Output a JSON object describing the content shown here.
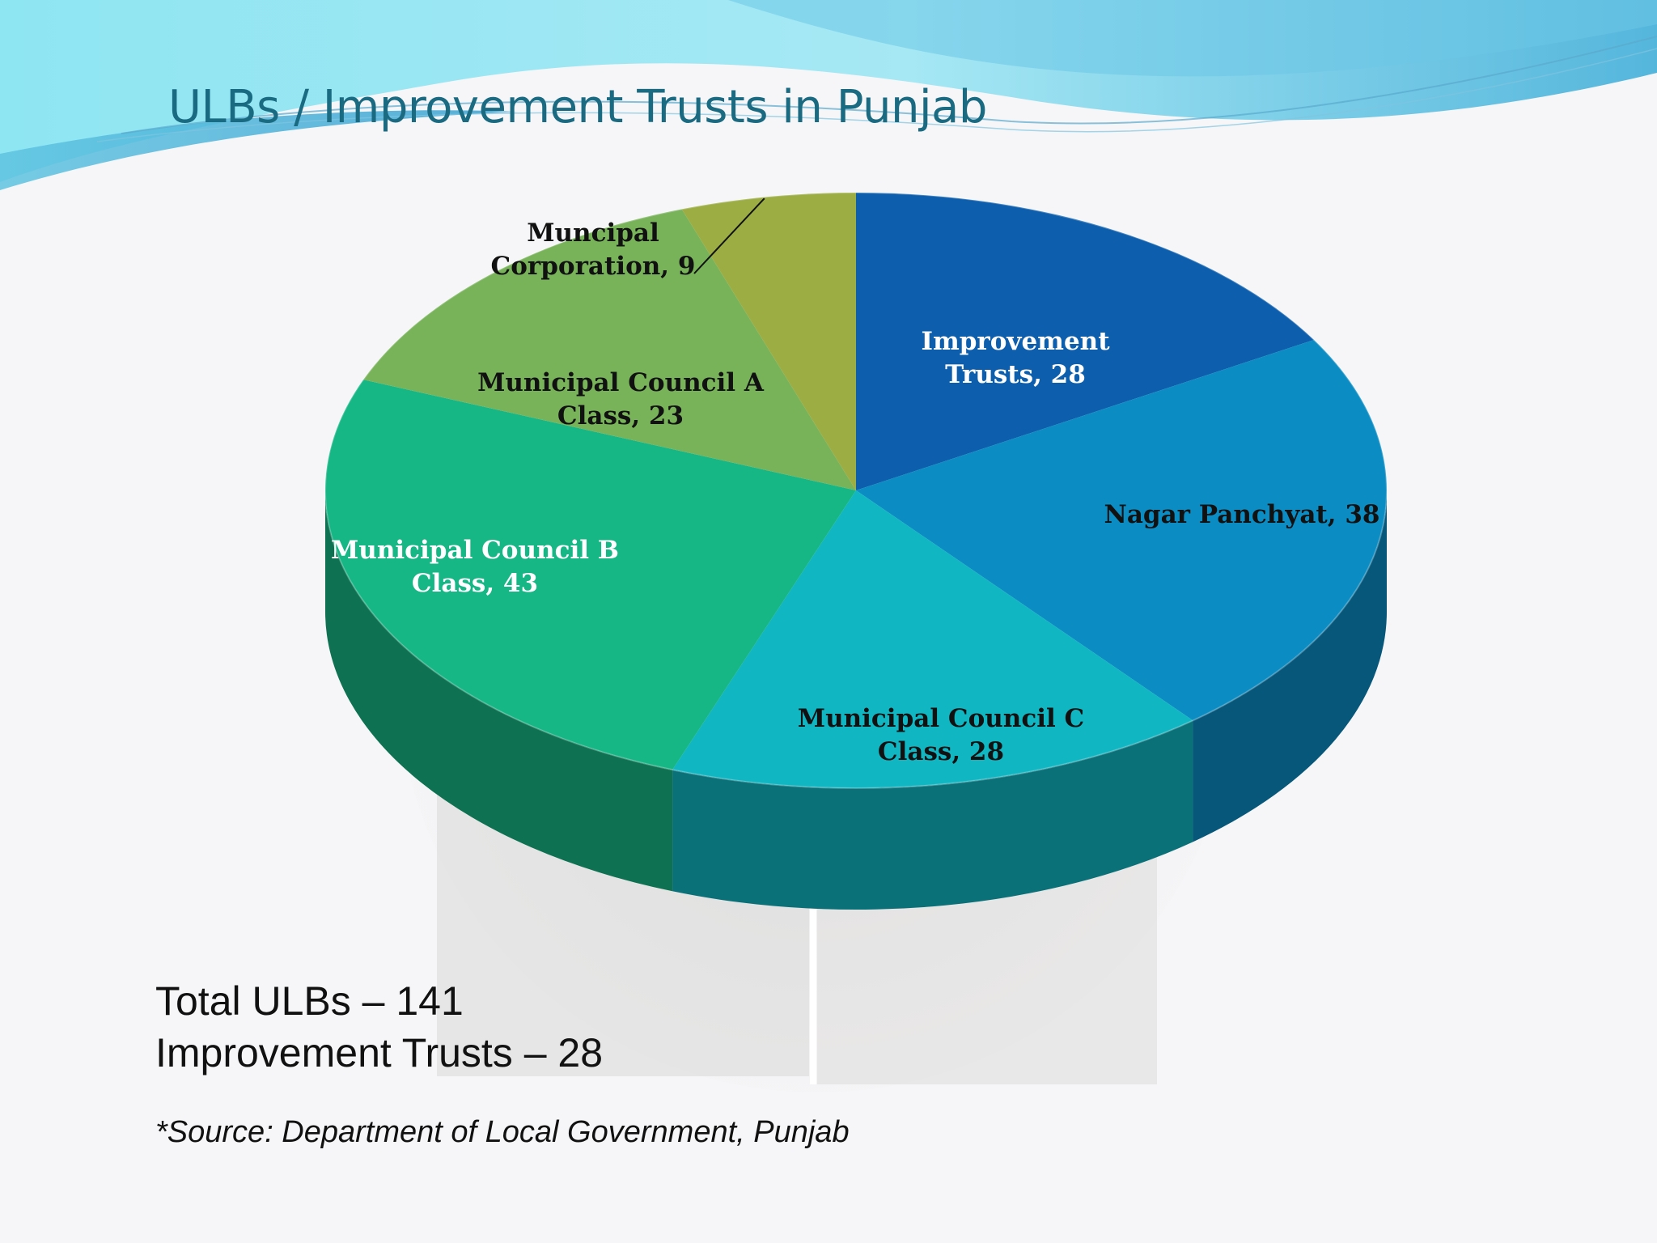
{
  "slide": {
    "title": "ULBs / Improvement Trusts in Punjab",
    "summary_total": "Total ULBs – 141",
    "summary_trusts": "Improvement Trusts – 28",
    "source": "*Source: Department of Local Government, Punjab"
  },
  "colors": {
    "title": "#1a6a82",
    "wave_light": "#8ee6f2",
    "wave_dark": "#55b6dc"
  },
  "chart_data": {
    "type": "pie",
    "style": "3d",
    "title": "",
    "slices": [
      {
        "label": "Improvement Trusts, 28",
        "lines": [
          "Improvement",
          "Trusts, 28"
        ],
        "value": 28,
        "color": "#0d5fae",
        "label_color": "#ffffff"
      },
      {
        "label": "Nagar Panchyat, 38",
        "lines": [
          "Nagar Panchyat, 38"
        ],
        "value": 38,
        "color": "#0b8dc4",
        "label_color": "#111111"
      },
      {
        "label": "Municipal Council C Class, 28",
        "lines": [
          "Municipal Council C",
          "Class, 28"
        ],
        "value": 28,
        "color": "#10b7c3",
        "label_color": "#111111"
      },
      {
        "label": "Municipal Council B Class, 43",
        "lines": [
          "Municipal Council B",
          "Class, 43"
        ],
        "value": 43,
        "color": "#16b785",
        "label_color": "#ffffff"
      },
      {
        "label": "Municipal Council A Class, 23",
        "lines": [
          "Municipal Council A",
          "Class, 23"
        ],
        "value": 23,
        "color": "#78b35a",
        "label_color": "#111111"
      },
      {
        "label": "Muncipal Corporation, 9",
        "lines": [
          "Muncipal",
          "Corporation, 9"
        ],
        "value": 9,
        "color": "#9cad43",
        "label_color": "#111111",
        "leader_line": true
      }
    ]
  }
}
